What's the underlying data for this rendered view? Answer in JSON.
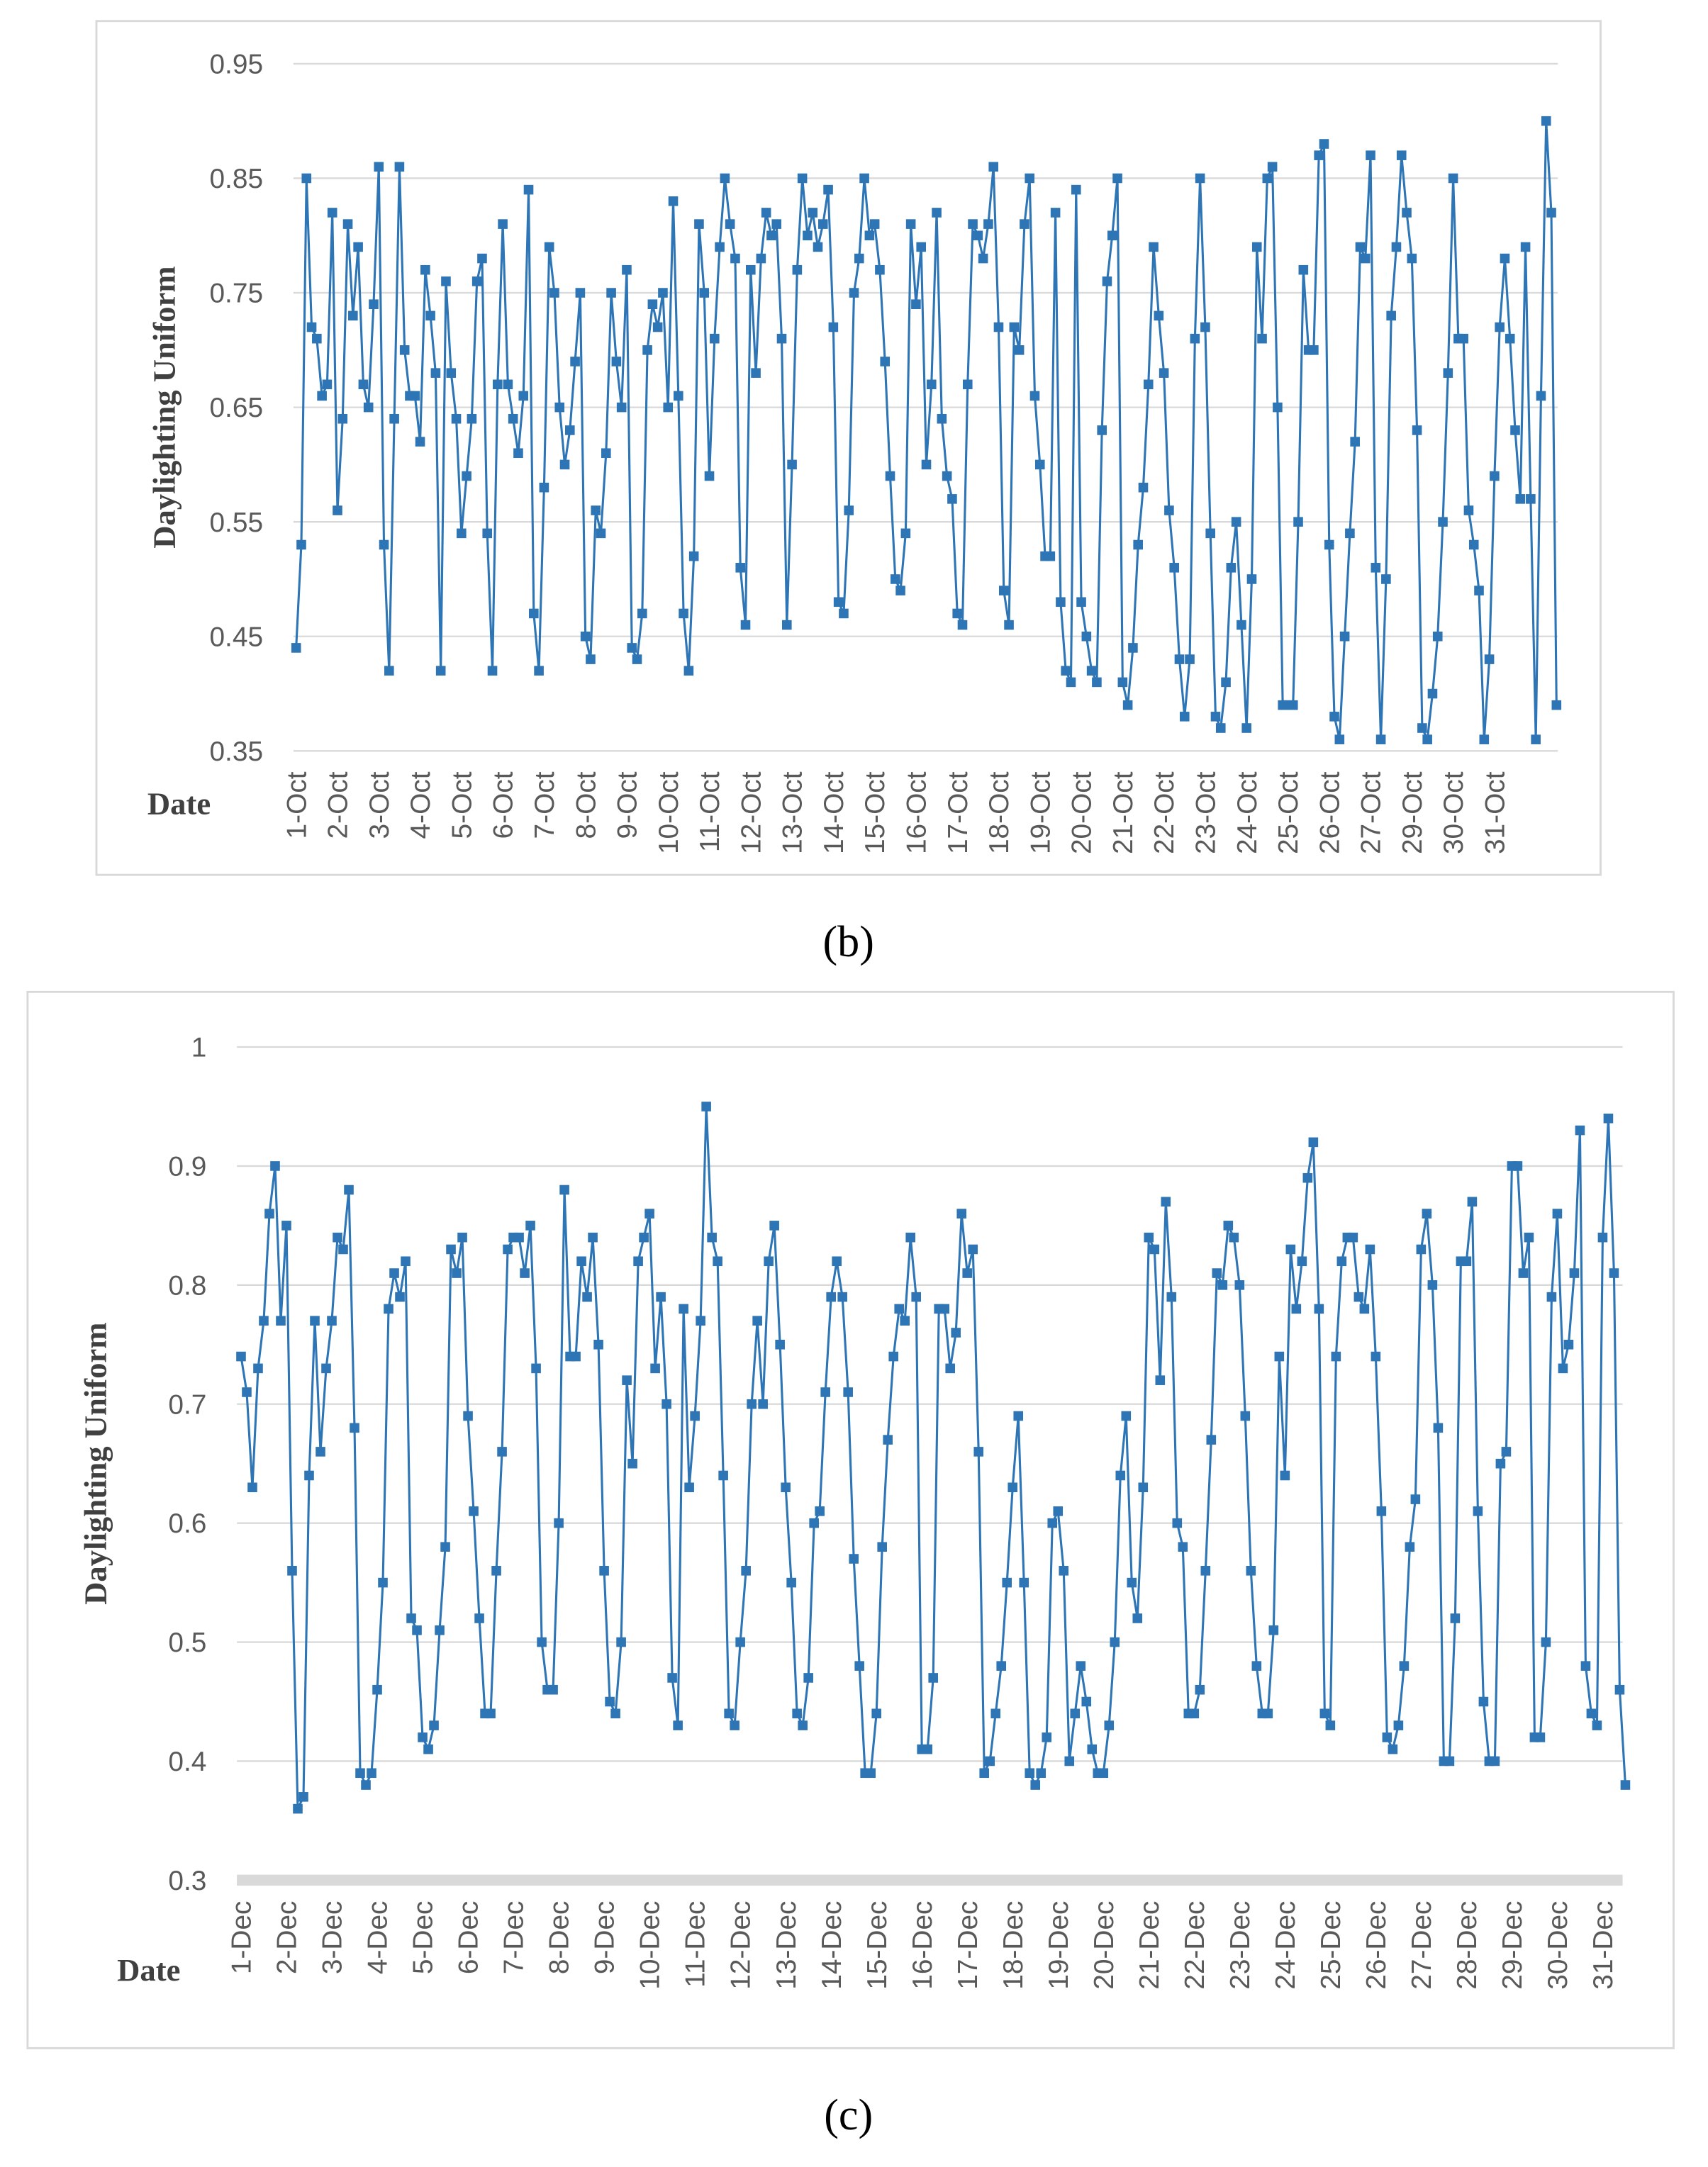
{
  "chart_data": [
    {
      "type": "line",
      "caption": "(b)",
      "y_label": "Daylighting Uniform",
      "x_label": "Date",
      "color": "#2e75b6",
      "marker": "square",
      "grid": true,
      "ylim": [
        0.35,
        0.95
      ],
      "yticks": [
        0.35,
        0.45,
        0.55,
        0.65,
        0.75,
        0.85,
        0.95
      ],
      "xlim": [
        0,
        244
      ],
      "xticks": [
        {
          "value": 0,
          "label": "1-Oct"
        },
        {
          "value": 8,
          "label": "2-Oct"
        },
        {
          "value": 16,
          "label": "3-Oct"
        },
        {
          "value": 24,
          "label": "4-Oct"
        },
        {
          "value": 32,
          "label": "5-Oct"
        },
        {
          "value": 40,
          "label": "6-Oct"
        },
        {
          "value": 48,
          "label": "7-Oct"
        },
        {
          "value": 56,
          "label": "8-Oct"
        },
        {
          "value": 64,
          "label": "9-Oct"
        },
        {
          "value": 72,
          "label": "10-Oct"
        },
        {
          "value": 80,
          "label": "11-Oct"
        },
        {
          "value": 88,
          "label": "12-Oct"
        },
        {
          "value": 96,
          "label": "13-Oct"
        },
        {
          "value": 104,
          "label": "14-Oct"
        },
        {
          "value": 112,
          "label": "15-Oct"
        },
        {
          "value": 120,
          "label": "16-Oct"
        },
        {
          "value": 128,
          "label": "17-Oct"
        },
        {
          "value": 136,
          "label": "18-Oct"
        },
        {
          "value": 144,
          "label": "19-Oct"
        },
        {
          "value": 152,
          "label": "20-Oct"
        },
        {
          "value": 160,
          "label": "21-Oct"
        },
        {
          "value": 168,
          "label": "22-Oct"
        },
        {
          "value": 176,
          "label": "23-Oct"
        },
        {
          "value": 184,
          "label": "24-Oct"
        },
        {
          "value": 192,
          "label": "25-Oct"
        },
        {
          "value": 200,
          "label": "26-Oct"
        },
        {
          "value": 208,
          "label": "27-Oct"
        },
        {
          "value": 216,
          "label": "29-Oct"
        },
        {
          "value": 224,
          "label": "30-Oct"
        },
        {
          "value": 232,
          "label": "31-Oct"
        }
      ],
      "values": [
        0.44,
        0.53,
        0.85,
        0.72,
        0.71,
        0.66,
        0.67,
        0.82,
        0.56,
        0.64,
        0.81,
        0.73,
        0.79,
        0.67,
        0.65,
        0.74,
        0.86,
        0.53,
        0.42,
        0.64,
        0.86,
        0.7,
        0.66,
        0.66,
        0.62,
        0.77,
        0.73,
        0.68,
        0.42,
        0.76,
        0.68,
        0.64,
        0.54,
        0.59,
        0.64,
        0.76,
        0.78,
        0.54,
        0.42,
        0.67,
        0.81,
        0.67,
        0.64,
        0.61,
        0.66,
        0.84,
        0.47,
        0.42,
        0.58,
        0.79,
        0.75,
        0.65,
        0.6,
        0.63,
        0.69,
        0.75,
        0.45,
        0.43,
        0.56,
        0.54,
        0.61,
        0.75,
        0.69,
        0.65,
        0.77,
        0.44,
        0.43,
        0.47,
        0.7,
        0.74,
        0.72,
        0.75,
        0.65,
        0.83,
        0.66,
        0.47,
        0.42,
        0.52,
        0.81,
        0.75,
        0.59,
        0.71,
        0.79,
        0.85,
        0.81,
        0.78,
        0.51,
        0.46,
        0.77,
        0.68,
        0.78,
        0.82,
        0.8,
        0.81,
        0.71,
        0.46,
        0.6,
        0.77,
        0.85,
        0.8,
        0.82,
        0.79,
        0.81,
        0.84,
        0.72,
        0.48,
        0.47,
        0.56,
        0.75,
        0.78,
        0.85,
        0.8,
        0.81,
        0.77,
        0.69,
        0.59,
        0.5,
        0.49,
        0.54,
        0.81,
        0.74,
        0.79,
        0.6,
        0.67,
        0.82,
        0.64,
        0.59,
        0.57,
        0.47,
        0.46,
        0.67,
        0.81,
        0.8,
        0.78,
        0.81,
        0.86,
        0.72,
        0.49,
        0.46,
        0.72,
        0.7,
        0.81,
        0.85,
        0.66,
        0.6,
        0.52,
        0.52,
        0.82,
        0.48,
        0.42,
        0.41,
        0.84,
        0.48,
        0.45,
        0.42,
        0.41,
        0.63,
        0.76,
        0.8,
        0.85,
        0.41,
        0.39,
        0.44,
        0.53,
        0.58,
        0.67,
        0.79,
        0.73,
        0.68,
        0.56,
        0.51,
        0.43,
        0.38,
        0.43,
        0.71,
        0.85,
        0.72,
        0.54,
        0.38,
        0.37,
        0.41,
        0.51,
        0.55,
        0.46,
        0.37,
        0.5,
        0.79,
        0.71,
        0.85,
        0.86,
        0.65,
        0.39,
        0.39,
        0.39,
        0.55,
        0.77,
        0.7,
        0.7,
        0.87,
        0.88,
        0.53,
        0.38,
        0.36,
        0.45,
        0.54,
        0.62,
        0.79,
        0.78,
        0.87,
        0.51,
        0.36,
        0.5,
        0.73,
        0.79,
        0.87,
        0.82,
        0.78,
        0.63,
        0.37,
        0.36,
        0.4,
        0.45,
        0.55,
        0.68,
        0.85,
        0.71,
        0.71,
        0.56,
        0.53,
        0.49,
        0.36,
        0.43,
        0.59,
        0.72,
        0.78,
        0.71,
        0.63,
        0.57,
        0.79,
        0.57,
        0.36,
        0.66,
        0.9,
        0.82,
        0.39
      ]
    },
    {
      "type": "line",
      "caption": "(c)",
      "y_label": "Daylighting Uniform",
      "x_label": "Date",
      "color": "#2e75b6",
      "marker": "square",
      "grid": true,
      "ylim": [
        0.3,
        1
      ],
      "yticks": [
        0.3,
        0.4,
        0.5,
        0.6,
        0.7,
        0.8,
        0.9,
        1
      ],
      "xlim": [
        0,
        244
      ],
      "xticks": [
        {
          "value": 0,
          "label": "1-Dec"
        },
        {
          "value": 8,
          "label": "2-Dec"
        },
        {
          "value": 16,
          "label": "3-Dec"
        },
        {
          "value": 24,
          "label": "4-Dec"
        },
        {
          "value": 32,
          "label": "5-Dec"
        },
        {
          "value": 40,
          "label": "6-Dec"
        },
        {
          "value": 48,
          "label": "7-Dec"
        },
        {
          "value": 56,
          "label": "8-Dec"
        },
        {
          "value": 64,
          "label": "9-Dec"
        },
        {
          "value": 72,
          "label": "10-Dec"
        },
        {
          "value": 80,
          "label": "11-Dec"
        },
        {
          "value": 88,
          "label": "12-Dec"
        },
        {
          "value": 96,
          "label": "13-Dec"
        },
        {
          "value": 104,
          "label": "14-Dec"
        },
        {
          "value": 112,
          "label": "15-Dec"
        },
        {
          "value": 120,
          "label": "16-Dec"
        },
        {
          "value": 128,
          "label": "17-Dec"
        },
        {
          "value": 136,
          "label": "18-Dec"
        },
        {
          "value": 144,
          "label": "19-Dec"
        },
        {
          "value": 152,
          "label": "20-Dec"
        },
        {
          "value": 160,
          "label": "21-Dec"
        },
        {
          "value": 168,
          "label": "22-Dec"
        },
        {
          "value": 176,
          "label": "23-Dec"
        },
        {
          "value": 184,
          "label": "24-Dec"
        },
        {
          "value": 192,
          "label": "25-Dec"
        },
        {
          "value": 200,
          "label": "26-Dec"
        },
        {
          "value": 208,
          "label": "27-Dec"
        },
        {
          "value": 216,
          "label": "28-Dec"
        },
        {
          "value": 224,
          "label": "29-Dec"
        },
        {
          "value": 232,
          "label": "30-Dec"
        },
        {
          "value": 240,
          "label": "31-Dec"
        }
      ],
      "values": [
        0.74,
        0.71,
        0.63,
        0.73,
        0.77,
        0.86,
        0.9,
        0.77,
        0.85,
        0.56,
        0.36,
        0.37,
        0.64,
        0.77,
        0.66,
        0.73,
        0.77,
        0.84,
        0.83,
        0.88,
        0.68,
        0.39,
        0.38,
        0.39,
        0.46,
        0.55,
        0.78,
        0.81,
        0.79,
        0.82,
        0.52,
        0.51,
        0.42,
        0.41,
        0.43,
        0.51,
        0.58,
        0.83,
        0.81,
        0.84,
        0.69,
        0.61,
        0.52,
        0.44,
        0.44,
        0.56,
        0.66,
        0.83,
        0.84,
        0.84,
        0.81,
        0.85,
        0.73,
        0.5,
        0.46,
        0.46,
        0.6,
        0.88,
        0.74,
        0.74,
        0.82,
        0.79,
        0.84,
        0.75,
        0.56,
        0.45,
        0.44,
        0.5,
        0.72,
        0.65,
        0.82,
        0.84,
        0.86,
        0.73,
        0.79,
        0.7,
        0.47,
        0.43,
        0.78,
        0.63,
        0.69,
        0.77,
        0.95,
        0.84,
        0.82,
        0.64,
        0.44,
        0.43,
        0.5,
        0.56,
        0.7,
        0.77,
        0.7,
        0.82,
        0.85,
        0.75,
        0.63,
        0.55,
        0.44,
        0.43,
        0.47,
        0.6,
        0.61,
        0.71,
        0.79,
        0.82,
        0.79,
        0.71,
        0.57,
        0.48,
        0.39,
        0.39,
        0.44,
        0.58,
        0.67,
        0.74,
        0.78,
        0.77,
        0.84,
        0.79,
        0.41,
        0.41,
        0.47,
        0.78,
        0.78,
        0.73,
        0.76,
        0.86,
        0.81,
        0.83,
        0.66,
        0.39,
        0.4,
        0.44,
        0.48,
        0.55,
        0.63,
        0.69,
        0.55,
        0.39,
        0.38,
        0.39,
        0.42,
        0.6,
        0.61,
        0.56,
        0.4,
        0.44,
        0.48,
        0.45,
        0.41,
        0.39,
        0.39,
        0.43,
        0.5,
        0.64,
        0.69,
        0.55,
        0.52,
        0.63,
        0.84,
        0.83,
        0.72,
        0.87,
        0.79,
        0.6,
        0.58,
        0.44,
        0.44,
        0.46,
        0.56,
        0.67,
        0.81,
        0.8,
        0.85,
        0.84,
        0.8,
        0.69,
        0.56,
        0.48,
        0.44,
        0.44,
        0.51,
        0.74,
        0.64,
        0.83,
        0.78,
        0.82,
        0.89,
        0.92,
        0.78,
        0.44,
        0.43,
        0.74,
        0.82,
        0.84,
        0.84,
        0.79,
        0.78,
        0.83,
        0.74,
        0.61,
        0.42,
        0.41,
        0.43,
        0.48,
        0.58,
        0.62,
        0.83,
        0.86,
        0.8,
        0.68,
        0.4,
        0.4,
        0.52,
        0.82,
        0.82,
        0.87,
        0.61,
        0.45,
        0.4,
        0.4,
        0.65,
        0.66,
        0.9,
        0.9,
        0.81,
        0.84,
        0.42,
        0.42,
        0.5,
        0.79,
        0.86,
        0.73,
        0.75,
        0.81,
        0.93,
        0.48,
        0.44,
        0.43,
        0.84,
        0.94,
        0.81,
        0.46,
        0.38
      ]
    }
  ]
}
